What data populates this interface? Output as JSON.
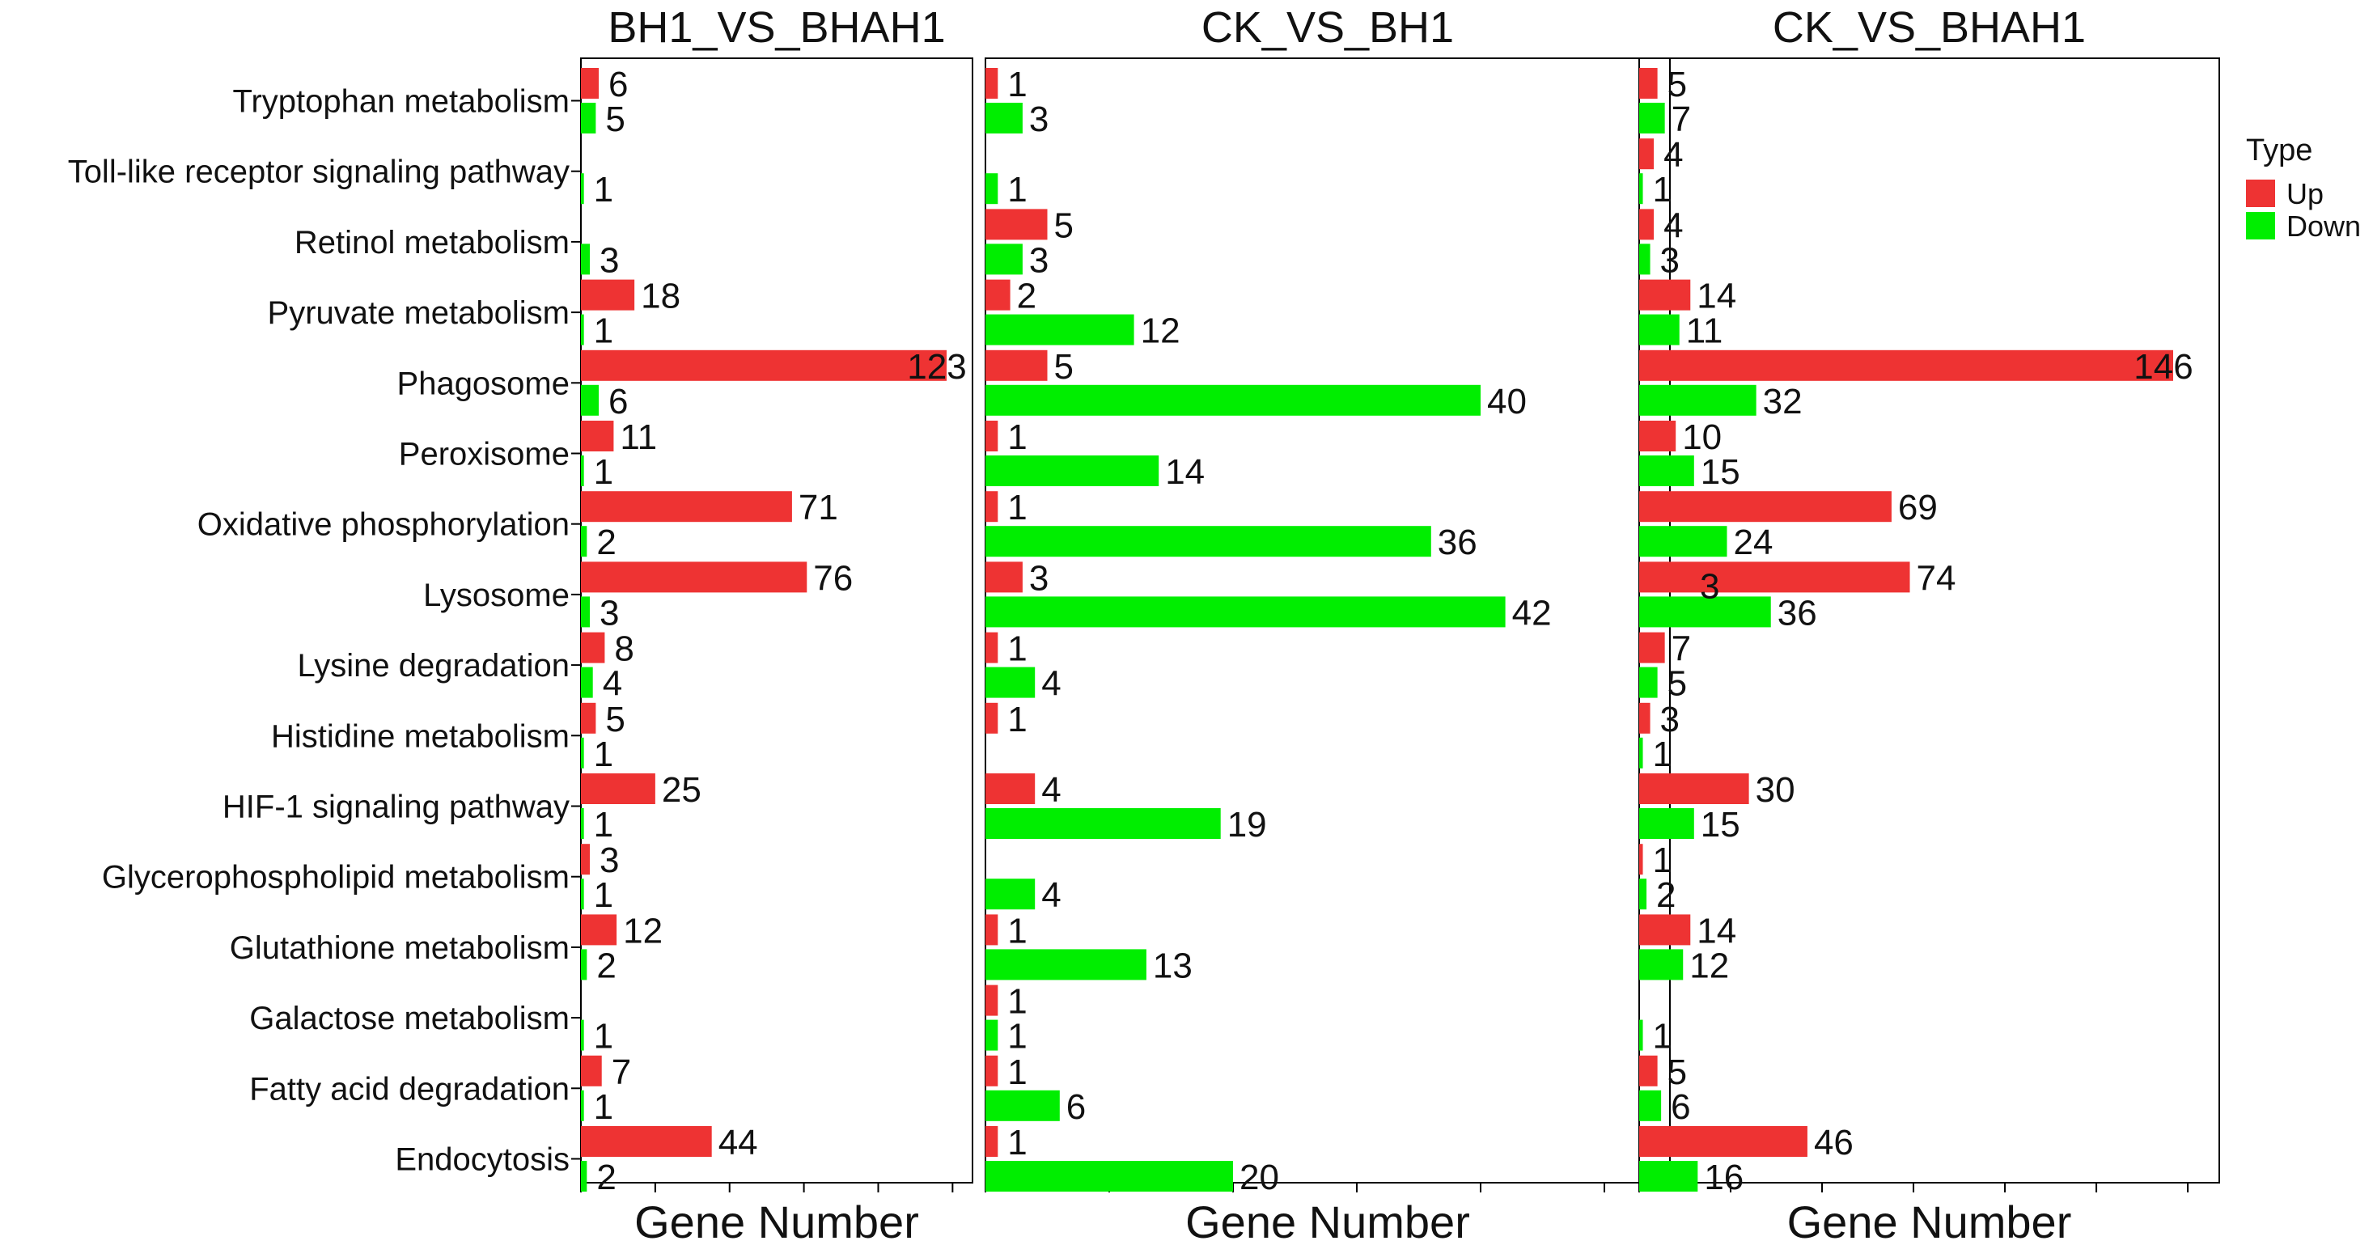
{
  "chart_data": {
    "type": "bar",
    "orientation": "horizontal",
    "categories": [
      "Tryptophan metabolism",
      "Toll-like receptor signaling pathway",
      "Retinol metabolism",
      "Pyruvate metabolism",
      "Phagosome",
      "Peroxisome",
      "Oxidative phosphorylation",
      "Lysosome",
      "Lysine degradation",
      "Histidine metabolism",
      "HIF-1 signaling pathway",
      "Glycerophospholipid metabolism",
      "Glutathione metabolism",
      "Galactose metabolism",
      "Fatty acid degradation",
      "Endocytosis"
    ],
    "legend": {
      "title": "Type",
      "position": "right",
      "items": [
        {
          "label": "Up",
          "color": "#EE3333"
        },
        {
          "label": "Down",
          "color": "#00EE00"
        }
      ]
    },
    "panels": [
      {
        "title": "BH1_VS_BHAH1",
        "xlabel": "Gene Number",
        "xlim": [
          0,
          150
        ],
        "series": [
          {
            "name": "Up",
            "values": [
              6,
              0,
              0,
              18,
              123,
              11,
              71,
              76,
              8,
              5,
              25,
              3,
              12,
              0,
              7,
              44
            ]
          },
          {
            "name": "Down",
            "values": [
              5,
              1,
              3,
              1,
              6,
              1,
              2,
              3,
              4,
              1,
              1,
              1,
              2,
              1,
              1,
              2
            ]
          }
        ]
      },
      {
        "title": "CK_VS_BH1",
        "xlabel": "Gene Number",
        "xlim": [
          0,
          50
        ],
        "series": [
          {
            "name": "Up",
            "values": [
              1,
              0,
              5,
              2,
              5,
              1,
              1,
              3,
              1,
              1,
              4,
              0,
              1,
              1,
              1,
              1
            ]
          },
          {
            "name": "Down",
            "values": [
              3,
              1,
              3,
              12,
              40,
              14,
              36,
              42,
              4,
              0,
              19,
              4,
              13,
              1,
              6,
              20
            ]
          }
        ]
      },
      {
        "title": "CK_VS_BHAH1",
        "xlabel": "Gene Number",
        "xlim": [
          0,
          150
        ],
        "series": [
          {
            "name": "Up",
            "values": [
              5,
              4,
              4,
              14,
              146,
              10,
              69,
              74,
              7,
              3,
              30,
              1,
              14,
              0,
              5,
              46
            ]
          },
          {
            "name": "Down",
            "values": [
              7,
              1,
              3,
              11,
              32,
              15,
              24,
              36,
              5,
              1,
              15,
              2,
              12,
              1,
              6,
              16
            ]
          }
        ]
      }
    ],
    "extra_annotations": [
      {
        "panel": 2,
        "category": "Lysosome",
        "text": "3"
      }
    ]
  }
}
